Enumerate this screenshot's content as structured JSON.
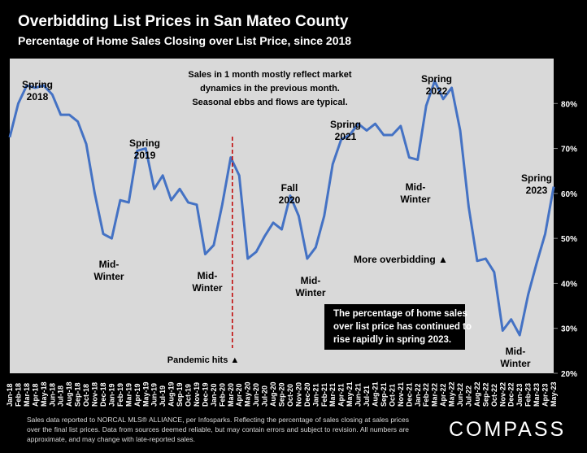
{
  "colors": {
    "background": "#000000",
    "plot_area": "#d9d9d9",
    "line": "#4472c4",
    "marker_line": "#c00000",
    "text": "#ffffff"
  },
  "chart_data": {
    "type": "area",
    "title": "Overbidding List Prices in San Mateo County",
    "subtitle": "Percentage of Home Sales Closing over List Price, since 2018",
    "ylim": [
      20,
      90
    ],
    "yticks": [
      "20%",
      "30%",
      "40%",
      "50%",
      "60%",
      "70%",
      "80%"
    ],
    "ytick_values": [
      20,
      30,
      40,
      50,
      60,
      70,
      80
    ],
    "grid": false,
    "categories": [
      "Jan-18",
      "Feb-18",
      "Mar-18",
      "Apr-18",
      "May-18",
      "Jun-18",
      "Jul-18",
      "Aug-18",
      "Sep-18",
      "Oct-18",
      "Nov-18",
      "Dec-18",
      "Jan-19",
      "Feb-19",
      "Mar-19",
      "Apr-19",
      "May-19",
      "Jun-19",
      "Jul-19",
      "Aug-19",
      "Sep-19",
      "Oct-19",
      "Nov-19",
      "Dec-19",
      "Jan-20",
      "Feb-20",
      "Mar-20",
      "Apr-20",
      "May-20",
      "Jun-20",
      "Jul-20",
      "Aug-20",
      "Sep-20",
      "Oct-20",
      "Nov-20",
      "Dec-20",
      "Jan-21",
      "Feb-21",
      "Mar-21",
      "Apr-21",
      "May-21",
      "Jun-21",
      "Jul-21",
      "Aug-21",
      "Sep-21",
      "Oct-21",
      "Nov-21",
      "Dec-21",
      "Jan-22",
      "Feb-22",
      "Mar-22",
      "Apr-22",
      "May-22",
      "Jun-22",
      "Jul-22",
      "Aug-22",
      "Sep-22",
      "Oct-22",
      "Nov-22",
      "Dec-22",
      "Jan-23",
      "Feb-23",
      "Mar-23",
      "Apr-23",
      "May-23"
    ],
    "values": [
      72.5,
      80,
      84,
      83.5,
      84,
      82,
      77.5,
      77.5,
      76,
      71,
      60,
      51,
      50,
      58.5,
      58,
      69.5,
      70,
      61,
      64,
      58.5,
      61,
      58,
      57.5,
      46.5,
      48.5,
      57.5,
      68,
      64,
      45.5,
      47,
      50.5,
      53.5,
      52,
      59.5,
      55,
      45.5,
      48,
      55,
      66.5,
      72,
      73,
      75.5,
      74,
      75.5,
      73,
      73,
      75,
      68,
      67.5,
      79.5,
      85,
      81,
      83.5,
      74,
      57,
      45,
      45.5,
      42.5,
      29.5,
      32,
      28.5,
      37.5,
      44.5,
      51,
      61.5
    ],
    "pandemic_marker": "Mar-20",
    "annotations": {
      "spring_2018": [
        "Spring",
        "2018"
      ],
      "spring_2019": [
        "Spring",
        "2019"
      ],
      "mid_winter_1": [
        "Mid-",
        "Winter"
      ],
      "mid_winter_2": [
        "Mid-",
        "Winter"
      ],
      "fall_2020": [
        "Fall",
        "2020"
      ],
      "mid_winter_3": [
        "Mid-",
        "Winter"
      ],
      "spring_2021": [
        "Spring",
        "2021"
      ],
      "spring_2022": [
        "Spring",
        "2022"
      ],
      "mid_winter_4": [
        "Mid-",
        "Winter"
      ],
      "spring_2023": [
        "Spring",
        "2023"
      ],
      "mid_winter_5": [
        "Mid-",
        "Winter"
      ],
      "market_note": [
        "Sales in 1 month mostly reflect market",
        "dynamics in the previous month.",
        "Seasonal ebbs and flows are typical."
      ],
      "pandemic": "Pandemic hits ▲",
      "overbidding": "More overbidding ▲",
      "callout": [
        "The percentage of home sales",
        "over list price has continued to",
        "rise rapidly in spring 2023."
      ]
    }
  },
  "footnote": "Sales data reported to NORCAL MLS® ALLIANCE, per Infosparks. Reflecting the percentage of sales closing at sales prices over the final list prices. Data from sources deemed reliable, but may contain errors and subject to revision. All numbers are approximate, and may change with late-reported sales.",
  "brand": "COMPASS"
}
